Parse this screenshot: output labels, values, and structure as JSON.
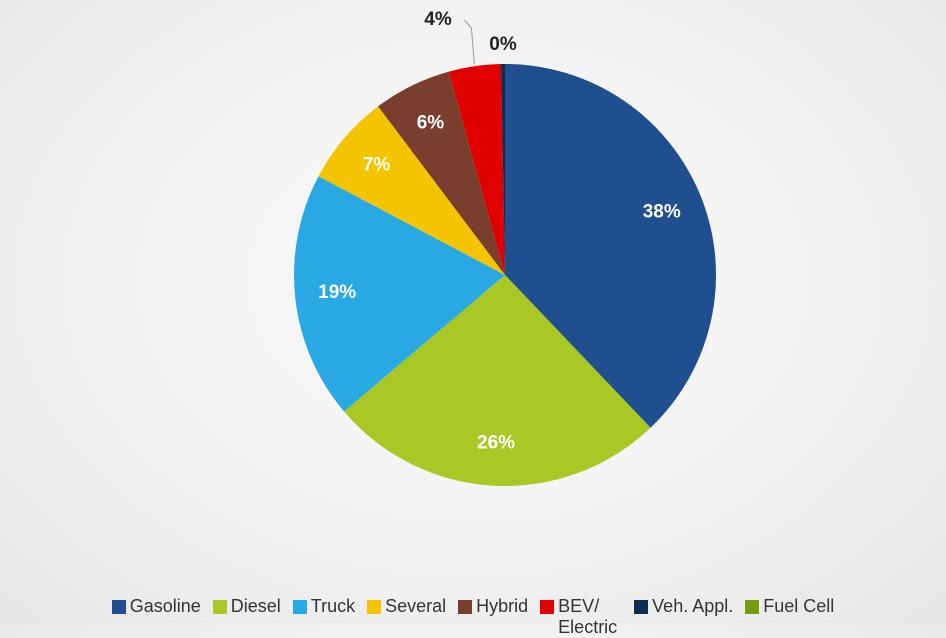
{
  "chart_data": {
    "type": "pie",
    "categories": [
      "Gasoline",
      "Diesel",
      "Truck",
      "Several",
      "Hybrid",
      "BEV/ Electric",
      "Veh. Appl.",
      "Fuel Cell"
    ],
    "values": [
      38,
      26,
      19,
      7,
      6,
      4,
      0.3,
      0
    ],
    "value_labels": [
      "38%",
      "26%",
      "19%",
      "7%",
      "6%",
      "4%",
      "0%",
      null
    ],
    "colors": [
      "#1f4f8e",
      "#a9c826",
      "#29a9e3",
      "#f5c400",
      "#7a3e2e",
      "#e00000",
      "#0e2b52",
      "#789a12"
    ],
    "legend": "bottom"
  }
}
